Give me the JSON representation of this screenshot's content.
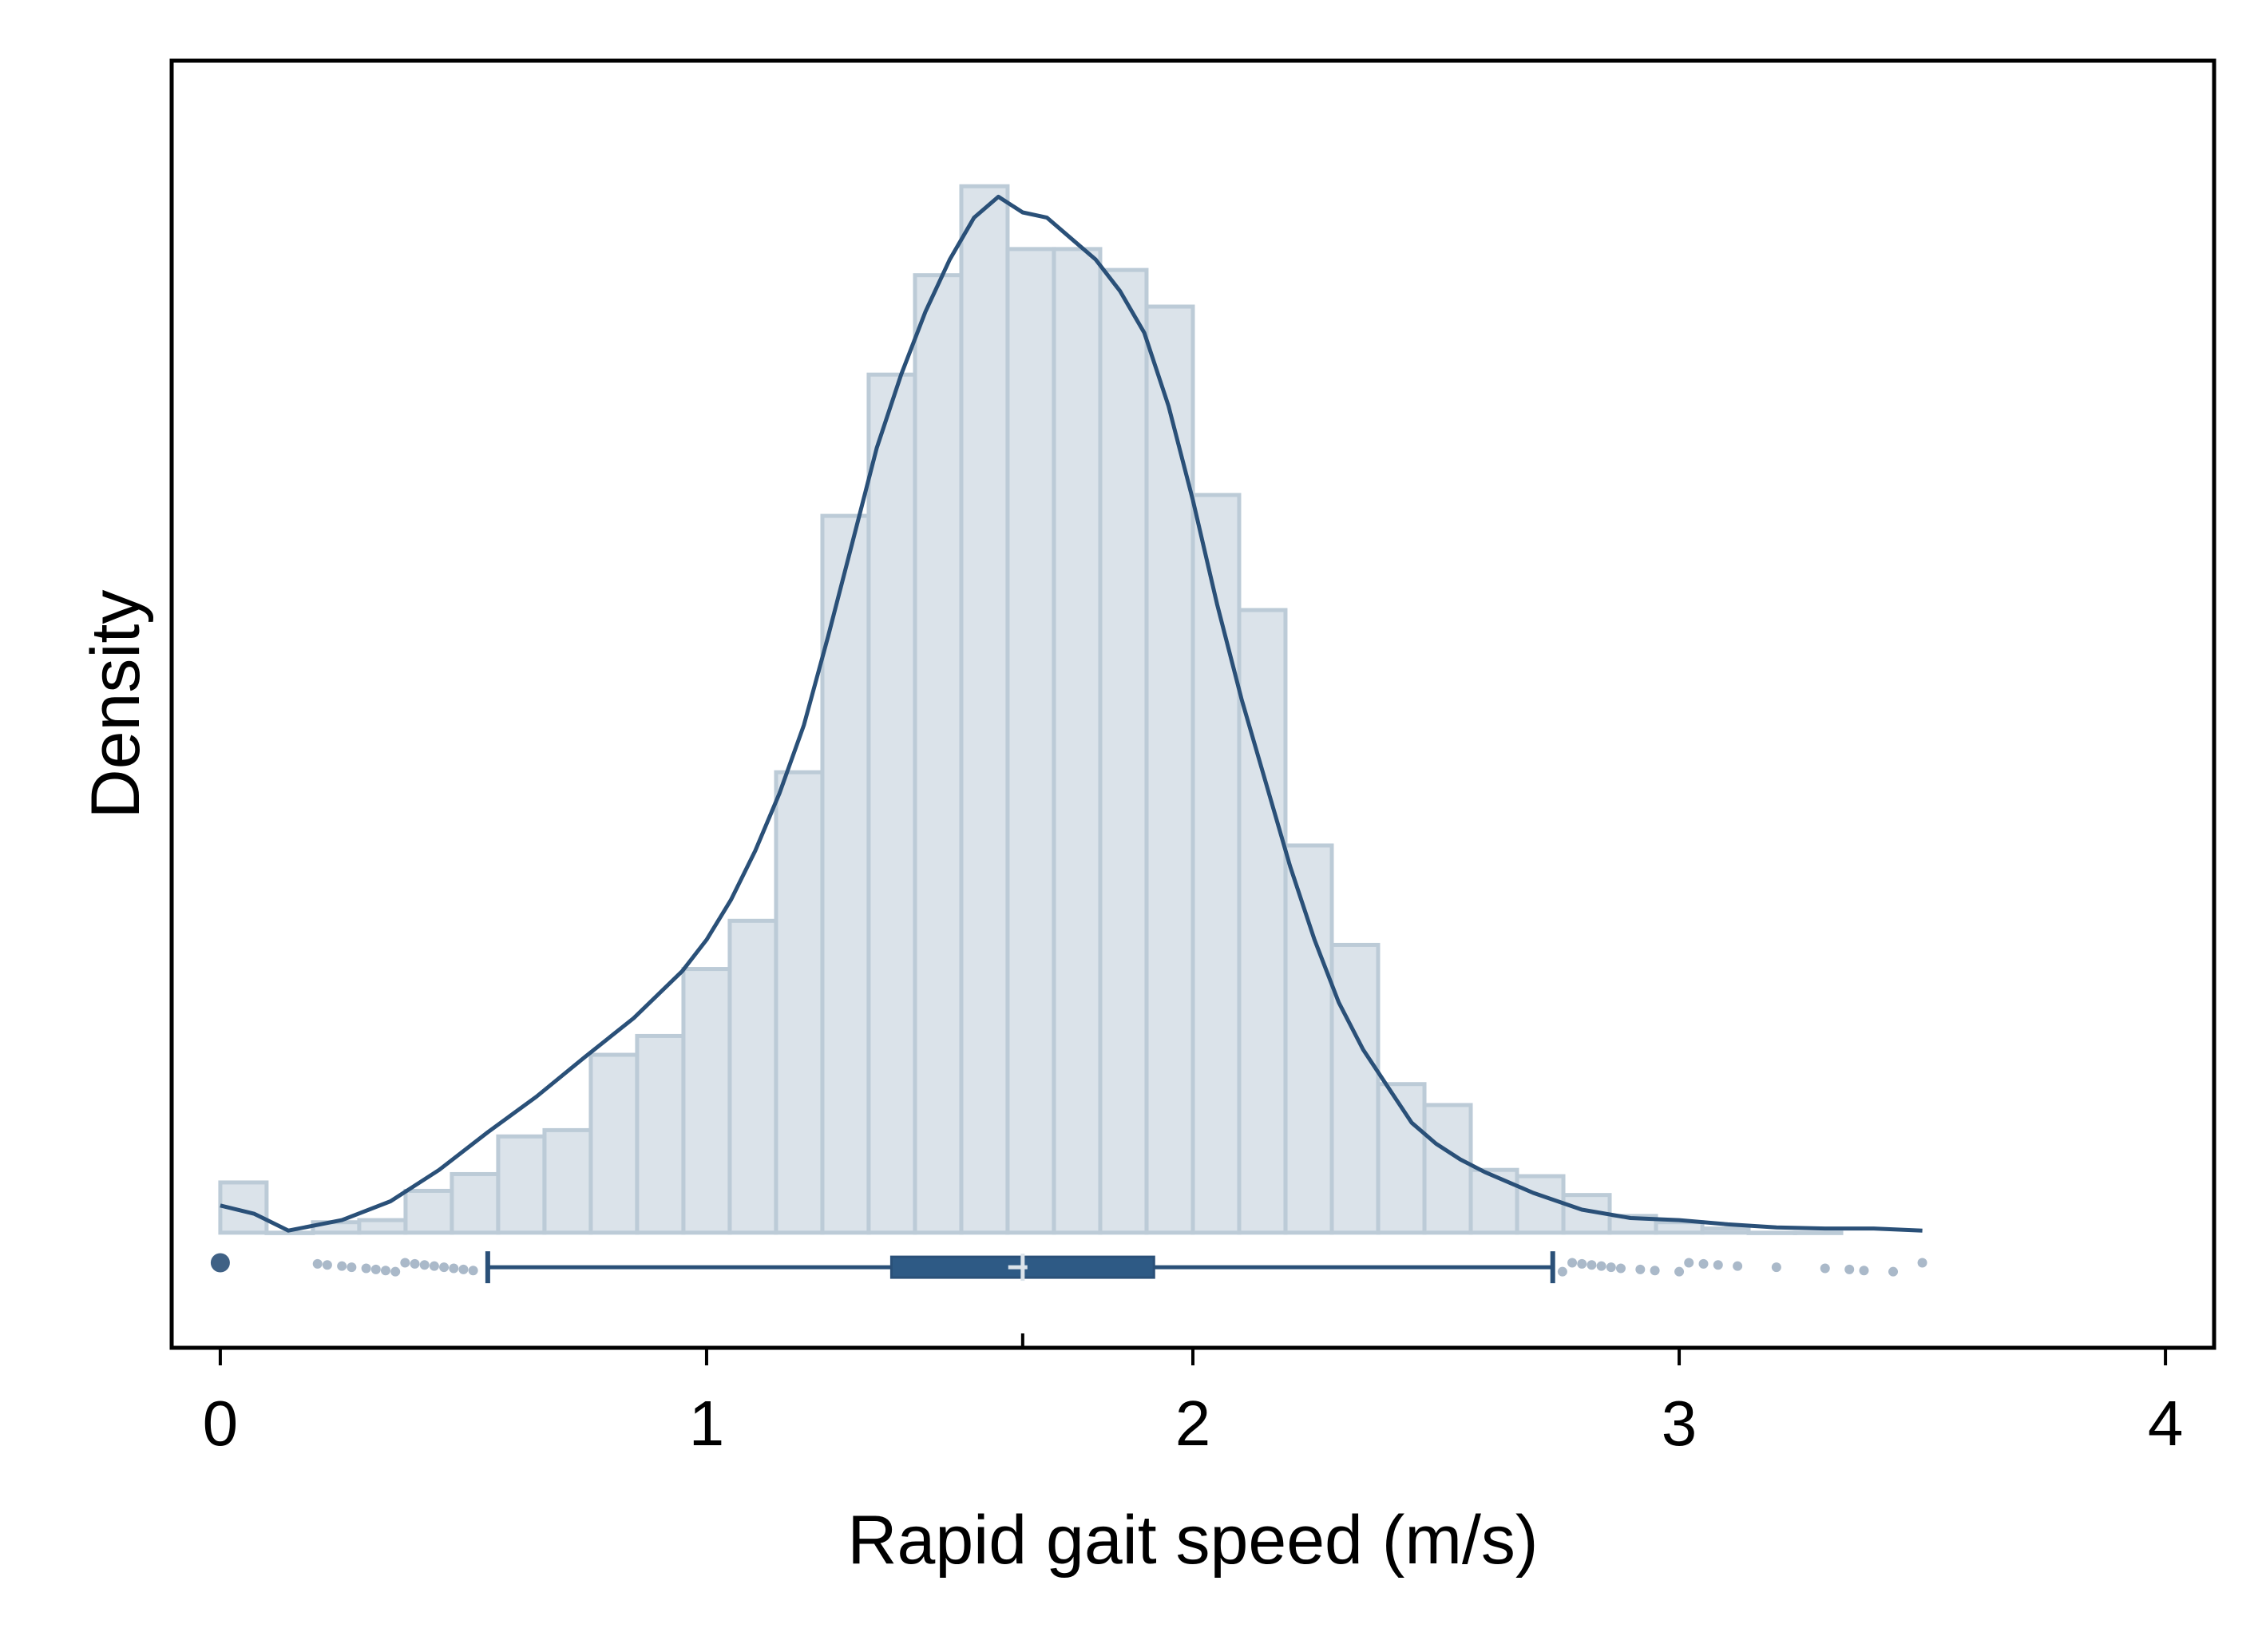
{
  "chart_data": {
    "type": "bar",
    "xlabel": "Rapid gait speed (m/s)",
    "ylabel": "Density",
    "xlim": [
      -0.1,
      4.1
    ],
    "ylim": [
      -0.11,
      1.12
    ],
    "x_ticks": [
      {
        "value": 0,
        "label": "0"
      },
      {
        "value": 1,
        "label": "1"
      },
      {
        "value": 2,
        "label": "2"
      },
      {
        "value": 3,
        "label": "3"
      },
      {
        "value": 4,
        "label": "4"
      }
    ],
    "y_ticks_shown": false,
    "grid": false,
    "colors": {
      "bar_fill": "#dbe3ea",
      "bar_edge": "#bccbd7",
      "line": "#2a5078",
      "box_fill": "#2e5a85",
      "axis": "#000000"
    },
    "histogram": {
      "bin_width": 0.0952,
      "bins": [
        {
          "x0": 0.0,
          "density": 0.048
        },
        {
          "x0": 0.0952,
          "density": 0.0
        },
        {
          "x0": 0.1905,
          "density": 0.01
        },
        {
          "x0": 0.2857,
          "density": 0.012
        },
        {
          "x0": 0.381,
          "density": 0.04
        },
        {
          "x0": 0.4762,
          "density": 0.056
        },
        {
          "x0": 0.5714,
          "density": 0.092
        },
        {
          "x0": 0.6667,
          "density": 0.098
        },
        {
          "x0": 0.7619,
          "density": 0.17
        },
        {
          "x0": 0.8571,
          "density": 0.188
        },
        {
          "x0": 0.9524,
          "density": 0.252
        },
        {
          "x0": 1.0476,
          "density": 0.298
        },
        {
          "x0": 1.1429,
          "density": 0.44
        },
        {
          "x0": 1.2381,
          "density": 0.685
        },
        {
          "x0": 1.3333,
          "density": 0.82
        },
        {
          "x0": 1.4286,
          "density": 0.915
        },
        {
          "x0": 1.5238,
          "density": 1.0
        },
        {
          "x0": 1.619,
          "density": 0.94
        },
        {
          "x0": 1.7143,
          "density": 0.94
        },
        {
          "x0": 1.8095,
          "density": 0.92
        },
        {
          "x0": 1.9048,
          "density": 0.885
        },
        {
          "x0": 2.0,
          "density": 0.705
        },
        {
          "x0": 2.0952,
          "density": 0.595
        },
        {
          "x0": 2.1905,
          "density": 0.37
        },
        {
          "x0": 2.2857,
          "density": 0.275
        },
        {
          "x0": 2.381,
          "density": 0.142
        },
        {
          "x0": 2.4762,
          "density": 0.122
        },
        {
          "x0": 2.5714,
          "density": 0.06
        },
        {
          "x0": 2.6667,
          "density": 0.054
        },
        {
          "x0": 2.7619,
          "density": 0.036
        },
        {
          "x0": 2.8571,
          "density": 0.016
        },
        {
          "x0": 2.9524,
          "density": 0.01
        },
        {
          "x0": 3.0476,
          "density": 0.004
        },
        {
          "x0": 3.1429,
          "density": 0.0
        },
        {
          "x0": 3.2381,
          "density": 0.0
        }
      ]
    },
    "kde": {
      "x": [
        0.0,
        0.07,
        0.14,
        0.25,
        0.35,
        0.45,
        0.55,
        0.65,
        0.75,
        0.85,
        0.95,
        1.0,
        1.05,
        1.1,
        1.15,
        1.2,
        1.25,
        1.3,
        1.35,
        1.4,
        1.45,
        1.5,
        1.55,
        1.6,
        1.65,
        1.7,
        1.75,
        1.8,
        1.85,
        1.9,
        1.95,
        2.0,
        2.05,
        2.1,
        2.15,
        2.2,
        2.25,
        2.3,
        2.35,
        2.4,
        2.45,
        2.5,
        2.55,
        2.6,
        2.65,
        2.7,
        2.8,
        2.9,
        3.0,
        3.1,
        3.2,
        3.3,
        3.4,
        3.5
      ],
      "y": [
        0.026,
        0.018,
        0.002,
        0.012,
        0.03,
        0.06,
        0.096,
        0.13,
        0.168,
        0.205,
        0.25,
        0.28,
        0.318,
        0.365,
        0.42,
        0.485,
        0.57,
        0.66,
        0.75,
        0.82,
        0.88,
        0.93,
        0.97,
        0.99,
        0.975,
        0.97,
        0.95,
        0.93,
        0.9,
        0.86,
        0.79,
        0.7,
        0.6,
        0.51,
        0.43,
        0.35,
        0.28,
        0.22,
        0.175,
        0.14,
        0.105,
        0.085,
        0.07,
        0.058,
        0.048,
        0.038,
        0.022,
        0.014,
        0.012,
        0.008,
        0.005,
        0.004,
        0.004,
        0.002
      ]
    },
    "boxplot": {
      "q1": 1.38,
      "median": 1.65,
      "q3": 1.92,
      "mean": 1.64,
      "whisker_low": 0.55,
      "whisker_high": 2.74,
      "outliers": [
        0.0,
        0.2,
        0.22,
        0.25,
        0.27,
        0.3,
        0.32,
        0.34,
        0.36,
        0.38,
        0.4,
        0.42,
        0.44,
        0.46,
        0.48,
        0.5,
        0.52,
        2.76,
        2.78,
        2.8,
        2.82,
        2.84,
        2.86,
        2.88,
        2.92,
        2.95,
        3.0,
        3.02,
        3.05,
        3.08,
        3.12,
        3.2,
        3.3,
        3.35,
        3.38,
        3.44,
        3.5
      ]
    }
  }
}
